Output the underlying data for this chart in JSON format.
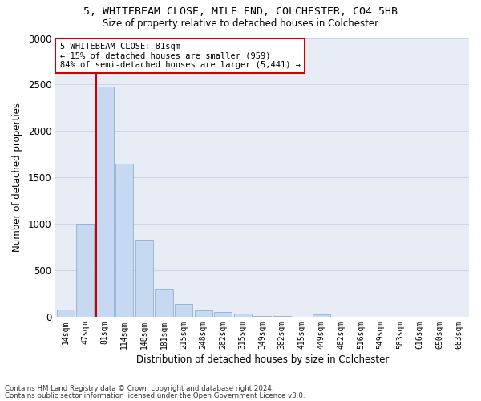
{
  "title1": "5, WHITEBEAM CLOSE, MILE END, COLCHESTER, CO4 5HB",
  "title2": "Size of property relative to detached houses in Colchester",
  "xlabel": "Distribution of detached houses by size in Colchester",
  "ylabel": "Number of detached properties",
  "categories": [
    "14sqm",
    "47sqm",
    "81sqm",
    "114sqm",
    "148sqm",
    "181sqm",
    "215sqm",
    "248sqm",
    "282sqm",
    "315sqm",
    "349sqm",
    "382sqm",
    "415sqm",
    "449sqm",
    "482sqm",
    "516sqm",
    "549sqm",
    "583sqm",
    "616sqm",
    "650sqm",
    "683sqm"
  ],
  "values": [
    80,
    1000,
    2480,
    1650,
    830,
    300,
    135,
    65,
    50,
    30,
    10,
    5,
    3,
    25,
    2,
    1,
    1,
    1,
    1,
    1,
    1
  ],
  "bar_color": "#c6d9f0",
  "bar_edge_color": "#7ca6cc",
  "highlight_line_index": 2,
  "red_line_color": "#cc0000",
  "annotation_text": "5 WHITEBEAM CLOSE: 81sqm\n← 15% of detached houses are smaller (959)\n84% of semi-detached houses are larger (5,441) →",
  "annotation_box_color": "#ffffff",
  "annotation_box_edge": "#cc0000",
  "ylim": [
    0,
    3000
  ],
  "yticks": [
    0,
    500,
    1000,
    1500,
    2000,
    2500,
    3000
  ],
  "grid_color": "#c8d4e8",
  "background_color": "#e8edf5",
  "footnote1": "Contains HM Land Registry data © Crown copyright and database right 2024.",
  "footnote2": "Contains public sector information licensed under the Open Government Licence v3.0."
}
